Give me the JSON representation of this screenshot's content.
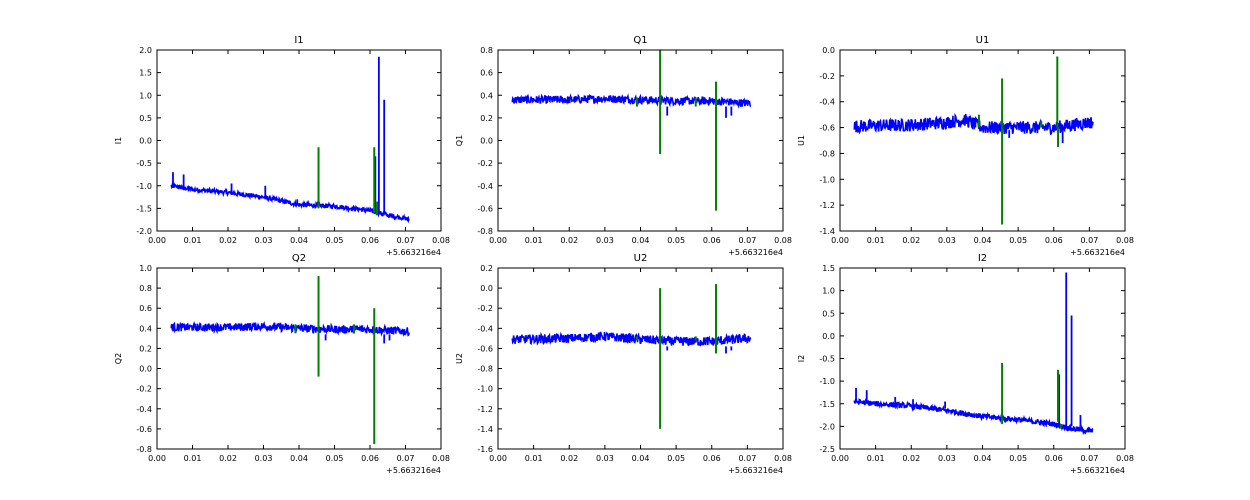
{
  "figure": {
    "offset_text": "+5.663216e4",
    "colors": {
      "blue": "#0000ff",
      "green": "#007f00",
      "axes": "#000000",
      "background": "#ffffff"
    }
  },
  "chart_data": [
    {
      "type": "line",
      "title": "I1",
      "xlabel": "",
      "ylabel": "I1",
      "xlim": [
        0.0,
        0.08
      ],
      "ylim": [
        -2.0,
        2.0
      ],
      "xticks": [
        "0.00",
        "0.01",
        "0.02",
        "0.03",
        "0.04",
        "0.05",
        "0.06",
        "0.07",
        "0.08"
      ],
      "yticks": [
        "-2.0",
        "-1.5",
        "-1.0",
        "-0.5",
        "0.0",
        "0.5",
        "1.0",
        "1.5",
        "2.0"
      ],
      "series": [
        {
          "color": "#0000ff",
          "x": [
            0.004,
            0.01,
            0.02,
            0.03,
            0.04,
            0.05,
            0.06,
            0.065,
            0.07,
            0.071
          ],
          "y": [
            -1.0,
            -1.08,
            -1.15,
            -1.25,
            -1.42,
            -1.45,
            -1.55,
            -1.65,
            -1.72,
            -1.75
          ],
          "band": 0.1,
          "spikes": [
            [
              0.0045,
              -1.05,
              -0.7
            ],
            [
              0.0075,
              -1.1,
              -0.75
            ],
            [
              0.021,
              -1.2,
              -0.95
            ],
            [
              0.0305,
              -1.3,
              -1.0
            ],
            [
              0.0395,
              -1.4,
              -1.3
            ],
            [
              0.0625,
              -1.6,
              1.85
            ],
            [
              0.064,
              -1.6,
              0.9
            ],
            [
              0.0615,
              -1.6,
              -0.35
            ]
          ]
        },
        {
          "color": "#007f00",
          "x": [],
          "y": [],
          "spikes": [
            [
              0.0455,
              -1.5,
              -0.15
            ],
            [
              0.0455,
              -1.45,
              -0.9
            ],
            [
              0.0612,
              -1.6,
              -0.15
            ],
            [
              0.062,
              -1.65,
              -1.35
            ]
          ]
        }
      ]
    },
    {
      "type": "line",
      "title": "Q1",
      "xlabel": "",
      "ylabel": "Q1",
      "xlim": [
        0.0,
        0.08
      ],
      "ylim": [
        -0.8,
        0.8
      ],
      "xticks": [
        "0.00",
        "0.01",
        "0.02",
        "0.03",
        "0.04",
        "0.05",
        "0.06",
        "0.07",
        "0.08"
      ],
      "yticks": [
        "-0.8",
        "-0.6",
        "-0.4",
        "-0.2",
        "0.0",
        "0.2",
        "0.4",
        "0.6",
        "0.8"
      ],
      "series": [
        {
          "color": "#0000ff",
          "x": [
            0.004,
            0.02,
            0.03,
            0.04,
            0.05,
            0.06,
            0.07,
            0.071
          ],
          "y": [
            0.36,
            0.36,
            0.37,
            0.36,
            0.35,
            0.35,
            0.33,
            0.33
          ],
          "band": 0.07,
          "spikes": [
            [
              0.064,
              0.3,
              0.2
            ],
            [
              0.0655,
              0.3,
              0.22
            ],
            [
              0.0475,
              0.3,
              0.22
            ]
          ]
        },
        {
          "color": "#007f00",
          "x": [],
          "y": [],
          "spikes": [
            [
              0.0455,
              0.3,
              0.8
            ],
            [
              0.0455,
              0.3,
              -0.12
            ],
            [
              0.0612,
              0.3,
              0.52
            ],
            [
              0.0612,
              0.3,
              -0.62
            ],
            [
              0.039,
              0.3,
              0.38
            ],
            [
              0.0555,
              0.3,
              0.38
            ]
          ]
        }
      ]
    },
    {
      "type": "line",
      "title": "U1",
      "xlabel": "",
      "ylabel": "U1",
      "xlim": [
        0.0,
        0.08
      ],
      "ylim": [
        -1.4,
        0.0
      ],
      "xticks": [
        "0.00",
        "0.01",
        "0.02",
        "0.03",
        "0.04",
        "0.05",
        "0.06",
        "0.07",
        "0.08"
      ],
      "yticks": [
        "-1.4",
        "-1.2",
        "-1.0",
        "-0.8",
        "-0.6",
        "-0.4",
        "-0.2",
        "0.0"
      ],
      "series": [
        {
          "color": "#0000ff",
          "x": [
            0.004,
            0.02,
            0.03,
            0.035,
            0.04,
            0.05,
            0.06,
            0.07,
            0.071
          ],
          "y": [
            -0.59,
            -0.58,
            -0.56,
            -0.54,
            -0.6,
            -0.6,
            -0.6,
            -0.56,
            -0.56
          ],
          "band": 0.1,
          "spikes": [
            [
              0.0625,
              -0.62,
              -0.72
            ],
            [
              0.0475,
              -0.62,
              -0.68
            ]
          ]
        },
        {
          "color": "#007f00",
          "x": [],
          "y": [],
          "spikes": [
            [
              0.0455,
              -0.6,
              -0.22
            ],
            [
              0.0455,
              -0.6,
              -1.35
            ],
            [
              0.061,
              -0.6,
              -0.05
            ],
            [
              0.0612,
              -0.6,
              -0.75
            ],
            [
              0.039,
              -0.6,
              -0.5
            ],
            [
              0.0565,
              -0.6,
              -0.55
            ]
          ]
        }
      ]
    },
    {
      "type": "line",
      "title": "Q2",
      "xlabel": "",
      "ylabel": "Q2",
      "xlim": [
        0.0,
        0.08
      ],
      "ylim": [
        -0.8,
        1.0
      ],
      "xticks": [
        "0.00",
        "0.01",
        "0.02",
        "0.03",
        "0.04",
        "0.05",
        "0.06",
        "0.07",
        "0.08"
      ],
      "yticks": [
        "-0.8",
        "-0.6",
        "-0.4",
        "-0.2",
        "0.0",
        "0.2",
        "0.4",
        "0.6",
        "0.8",
        "1.0"
      ],
      "series": [
        {
          "color": "#0000ff",
          "x": [
            0.004,
            0.02,
            0.03,
            0.04,
            0.05,
            0.06,
            0.07,
            0.071
          ],
          "y": [
            0.41,
            0.41,
            0.42,
            0.4,
            0.39,
            0.39,
            0.37,
            0.37
          ],
          "band": 0.08,
          "spikes": [
            [
              0.064,
              0.34,
              0.25
            ],
            [
              0.0655,
              0.34,
              0.28
            ],
            [
              0.0475,
              0.34,
              0.28
            ]
          ]
        },
        {
          "color": "#007f00",
          "x": [],
          "y": [],
          "spikes": [
            [
              0.0455,
              0.35,
              0.92
            ],
            [
              0.0455,
              0.35,
              -0.08
            ],
            [
              0.0612,
              0.35,
              0.6
            ],
            [
              0.0612,
              0.35,
              -0.75
            ],
            [
              0.039,
              0.35,
              0.44
            ],
            [
              0.0555,
              0.35,
              0.44
            ]
          ]
        }
      ]
    },
    {
      "type": "line",
      "title": "U2",
      "xlabel": "",
      "ylabel": "U2",
      "xlim": [
        0.0,
        0.08
      ],
      "ylim": [
        -1.6,
        0.2
      ],
      "xticks": [
        "0.00",
        "0.01",
        "0.02",
        "0.03",
        "0.04",
        "0.05",
        "0.06",
        "0.07",
        "0.08"
      ],
      "yticks": [
        "-1.6",
        "-1.4",
        "-1.2",
        "-1.0",
        "-0.8",
        "-0.6",
        "-0.4",
        "-0.2",
        "0.0",
        "0.2"
      ],
      "series": [
        {
          "color": "#0000ff",
          "x": [
            0.004,
            0.02,
            0.03,
            0.04,
            0.05,
            0.06,
            0.07,
            0.071
          ],
          "y": [
            -0.51,
            -0.5,
            -0.48,
            -0.51,
            -0.53,
            -0.53,
            -0.5,
            -0.5
          ],
          "band": 0.09,
          "spikes": [
            [
              0.064,
              -0.58,
              -0.65
            ],
            [
              0.0655,
              -0.58,
              -0.62
            ],
            [
              0.0475,
              -0.58,
              -0.62
            ]
          ]
        },
        {
          "color": "#007f00",
          "x": [],
          "y": [],
          "spikes": [
            [
              0.0455,
              -0.52,
              0.0
            ],
            [
              0.0455,
              -0.52,
              -1.4
            ],
            [
              0.0612,
              -0.52,
              0.04
            ],
            [
              0.0612,
              -0.52,
              -0.65
            ],
            [
              0.039,
              -0.52,
              -0.48
            ],
            [
              0.0555,
              -0.52,
              -0.48
            ]
          ]
        }
      ]
    },
    {
      "type": "line",
      "title": "I2",
      "xlabel": "",
      "ylabel": "I2",
      "xlim": [
        0.0,
        0.08
      ],
      "ylim": [
        -2.5,
        1.5
      ],
      "xticks": [
        "0.00",
        "0.01",
        "0.02",
        "0.03",
        "0.04",
        "0.05",
        "0.06",
        "0.07",
        "0.08"
      ],
      "yticks": [
        "-2.5",
        "-2.0",
        "-1.5",
        "-1.0",
        "-0.5",
        "0.0",
        "0.5",
        "1.0",
        "1.5"
      ],
      "series": [
        {
          "color": "#0000ff",
          "x": [
            0.004,
            0.01,
            0.02,
            0.03,
            0.04,
            0.05,
            0.06,
            0.065,
            0.07,
            0.071
          ],
          "y": [
            -1.45,
            -1.5,
            -1.55,
            -1.65,
            -1.78,
            -1.85,
            -1.95,
            -2.05,
            -2.1,
            -2.1
          ],
          "band": 0.12,
          "spikes": [
            [
              0.0045,
              -1.45,
              -1.15
            ],
            [
              0.0075,
              -1.45,
              -1.2
            ],
            [
              0.0155,
              -1.55,
              -1.35
            ],
            [
              0.0205,
              -1.55,
              -1.4
            ],
            [
              0.0295,
              -1.6,
              -1.45
            ],
            [
              0.0635,
              -2.0,
              1.4
            ],
            [
              0.065,
              -2.0,
              0.45
            ],
            [
              0.0675,
              -2.0,
              -1.75
            ],
            [
              0.0615,
              -2.0,
              -0.85
            ]
          ]
        },
        {
          "color": "#007f00",
          "x": [],
          "y": [],
          "spikes": [
            [
              0.0455,
              -1.8,
              -0.6
            ],
            [
              0.0455,
              -1.8,
              -1.95
            ],
            [
              0.0612,
              -1.9,
              -0.75
            ],
            [
              0.062,
              -1.95,
              -2.05
            ]
          ]
        }
      ]
    }
  ]
}
